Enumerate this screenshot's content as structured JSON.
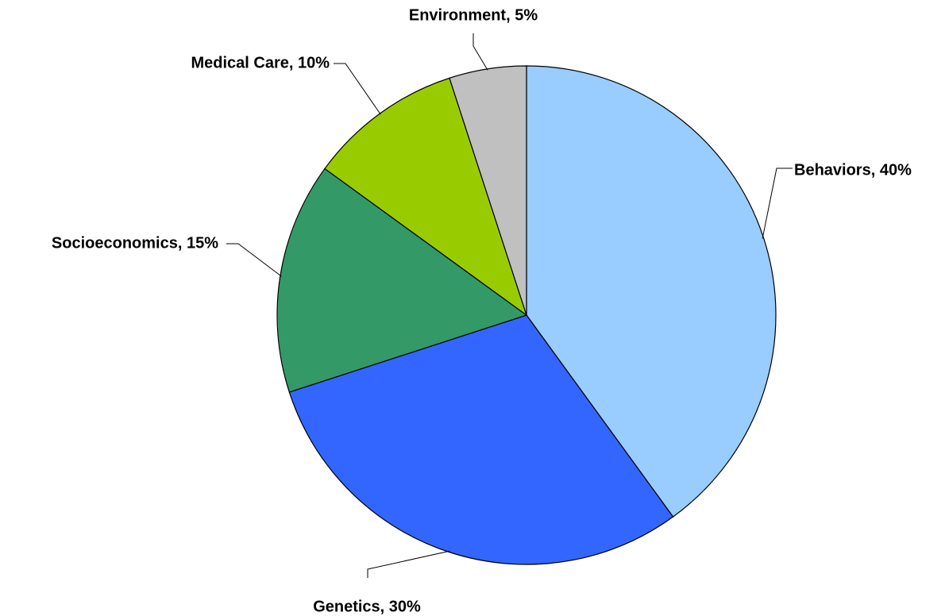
{
  "chart_data": {
    "type": "pie",
    "value_labels": [
      "Behaviors, 40%",
      "Genetics, 30%",
      "Socioeconomics, 15%",
      "Medical Care, 10%",
      "Environment, 5%"
    ],
    "values": [
      40,
      30,
      15,
      10,
      5
    ],
    "colors": [
      "#99ccff",
      "#3366ff",
      "#339966",
      "#99cc00",
      "#c0c0c0"
    ]
  }
}
